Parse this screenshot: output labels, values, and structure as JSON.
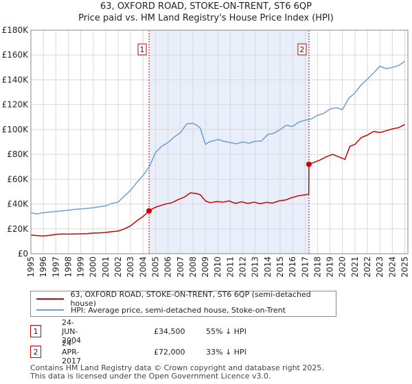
{
  "chart_data": {
    "type": "line",
    "title": "63, OXFORD ROAD, STOKE-ON-TRENT, ST6 6QP",
    "subtitle": "Price paid vs. HM Land Registry's House Price Index (HPI)",
    "xlabel": "",
    "ylabel": "",
    "xlim": [
      1995,
      2025.25
    ],
    "ylim": [
      0,
      180000
    ],
    "x_ticks": [
      "1995",
      "1996",
      "1997",
      "1998",
      "1999",
      "2000",
      "2001",
      "2002",
      "2003",
      "2004",
      "2005",
      "2006",
      "2007",
      "2008",
      "2009",
      "2010",
      "2011",
      "2012",
      "2013",
      "2014",
      "2015",
      "2016",
      "2017",
      "2018",
      "2019",
      "2020",
      "2021",
      "2022",
      "2023",
      "2024",
      "2025"
    ],
    "y_ticks": [
      {
        "value": 0,
        "label": "£0"
      },
      {
        "value": 20000,
        "label": "£20K"
      },
      {
        "value": 40000,
        "label": "£40K"
      },
      {
        "value": 60000,
        "label": "£60K"
      },
      {
        "value": 80000,
        "label": "£80K"
      },
      {
        "value": 100000,
        "label": "£100K"
      },
      {
        "value": 120000,
        "label": "£120K"
      },
      {
        "value": 140000,
        "label": "£140K"
      },
      {
        "value": 160000,
        "label": "£160K"
      },
      {
        "value": 180000,
        "label": "£180K"
      }
    ],
    "grid": true,
    "shaded_period": [
      2004.48,
      2017.31
    ],
    "series": [
      {
        "name": "63, OXFORD ROAD, STOKE-ON-TRENT, ST6 6QP (semi-detached house)",
        "color": "#cc0000",
        "x": [
          1995,
          1995.5,
          1996,
          1996.5,
          1997,
          1997.5,
          1998,
          1998.5,
          1999,
          1999.5,
          2000,
          2000.5,
          2001,
          2001.5,
          2002,
          2002.5,
          2003,
          2003.5,
          2004,
          2004.48,
          2004.9,
          2005.3,
          2005.8,
          2006.3,
          2006.8,
          2007.3,
          2007.8,
          2008.3,
          2008.6,
          2009,
          2009.4,
          2009.9,
          2010.4,
          2010.9,
          2011.4,
          2011.9,
          2012.4,
          2012.9,
          2013.4,
          2013.9,
          2014.4,
          2014.9,
          2015.4,
          2015.9,
          2016.4,
          2016.9,
          2017.3,
          2017.31,
          2017.7,
          2018.2,
          2018.7,
          2019.2,
          2019.7,
          2020.2,
          2020.6,
          2021,
          2021.5,
          2022,
          2022.5,
          2023,
          2023.5,
          2024,
          2024.5,
          2025
        ],
        "values": [
          15000,
          14600,
          14300,
          14800,
          15600,
          15900,
          15800,
          15900,
          16000,
          16200,
          16600,
          16800,
          17100,
          17800,
          18200,
          20000,
          22500,
          26500,
          30000,
          34500,
          37000,
          38500,
          40000,
          41000,
          43500,
          45500,
          49000,
          48500,
          47500,
          42500,
          41000,
          42000,
          41500,
          42500,
          40500,
          41800,
          40500,
          41500,
          40300,
          41300,
          40800,
          42500,
          43200,
          45000,
          46500,
          47300,
          48000,
          72000,
          73500,
          75500,
          78000,
          80000,
          78000,
          76000,
          86500,
          88000,
          93500,
          95500,
          98500,
          97500,
          99000,
          100500,
          101500,
          104000
        ]
      },
      {
        "name": "HPI: Average price, semi-detached house, Stoke-on-Trent",
        "color": "#6f9dd6",
        "x": [
          1995,
          1995.5,
          1996,
          1996.5,
          1997,
          1997.5,
          1998,
          1998.5,
          1999,
          1999.5,
          2000,
          2000.5,
          2001,
          2001.5,
          2002,
          2002.5,
          2003,
          2003.5,
          2004,
          2004.5,
          2005,
          2005.5,
          2006,
          2006.5,
          2007,
          2007.5,
          2008,
          2008.3,
          2008.6,
          2009,
          2009.3,
          2009.7,
          2010,
          2010.5,
          2011,
          2011.5,
          2012,
          2012.5,
          2013,
          2013.5,
          2014,
          2014.5,
          2015,
          2015.5,
          2016,
          2016.5,
          2017,
          2017.5,
          2018,
          2018.5,
          2019,
          2019.5,
          2020,
          2020.5,
          2021,
          2021.5,
          2022,
          2022.5,
          2023,
          2023.5,
          2024,
          2024.5,
          2025
        ],
        "values": [
          33000,
          32000,
          33000,
          33500,
          34000,
          34500,
          35000,
          35800,
          36000,
          36500,
          37000,
          37800,
          38500,
          40500,
          41500,
          46500,
          51000,
          57500,
          63000,
          70000,
          81500,
          86500,
          89500,
          94000,
          97500,
          104500,
          105000,
          103500,
          101000,
          88000,
          90000,
          91000,
          92000,
          90500,
          89500,
          88500,
          90000,
          89000,
          90500,
          90800,
          96000,
          97000,
          100000,
          103500,
          102500,
          106000,
          107500,
          108500,
          111500,
          113000,
          116500,
          117500,
          116000,
          125000,
          129500,
          136000,
          140500,
          145500,
          151000,
          149000,
          150000,
          151500,
          155000
        ]
      }
    ],
    "annotations": [
      {
        "label": "1",
        "x": 2004.48,
        "value": 34500
      },
      {
        "label": "2",
        "x": 2017.31,
        "value": 72000
      }
    ]
  },
  "legend": {
    "items": [
      {
        "label": "63, OXFORD ROAD, STOKE-ON-TRENT, ST6 6QP (semi-detached house)",
        "color": "#cc0000"
      },
      {
        "label": "HPI: Average price, semi-detached house, Stoke-on-Trent",
        "color": "#6f9dd6"
      }
    ]
  },
  "transactions": [
    {
      "id": "1",
      "date": "24-JUN-2004",
      "price": "£34,500",
      "hpi": "55% ↓ HPI"
    },
    {
      "id": "2",
      "date": "24-APR-2017",
      "price": "£72,000",
      "hpi": "33% ↓ HPI"
    }
  ],
  "footer": {
    "line1": "Contains HM Land Registry data © Crown copyright and database right 2025.",
    "line2": "This data is licensed under the Open Government Licence v3.0."
  }
}
